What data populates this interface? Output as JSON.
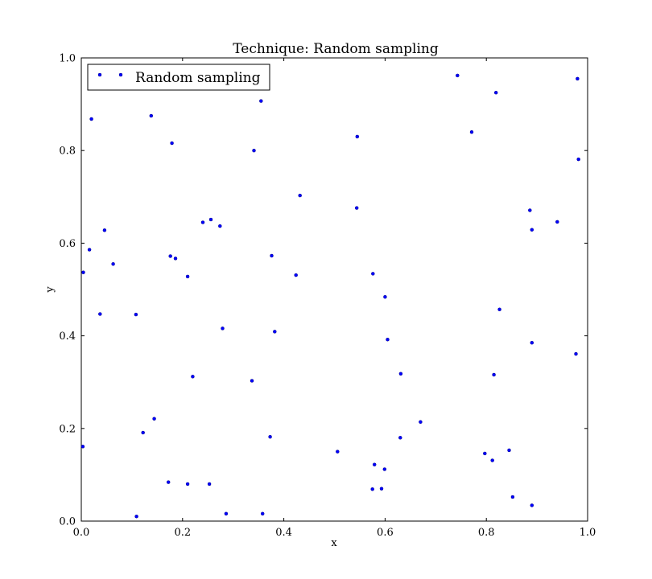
{
  "chart_data": {
    "type": "scatter",
    "title": "Technique: Random sampling",
    "xlabel": "x",
    "ylabel": "y",
    "xlim": [
      0.0,
      1.0
    ],
    "ylim": [
      0.0,
      1.0
    ],
    "x_ticks": [
      "0.0",
      "0.2",
      "0.4",
      "0.6",
      "0.8",
      "1.0"
    ],
    "y_ticks": [
      "0.0",
      "0.2",
      "0.4",
      "0.6",
      "0.8",
      "1.0"
    ],
    "grid": false,
    "legend": {
      "position": "top-left",
      "entries": [
        "Random sampling"
      ]
    },
    "series": [
      {
        "name": "Random sampling",
        "color": "#0000ff",
        "marker": "point",
        "points": [
          [
            0.743,
            0.962
          ],
          [
            0.98,
            0.955
          ],
          [
            0.819,
            0.925
          ],
          [
            0.355,
            0.907
          ],
          [
            0.02,
            0.868
          ],
          [
            0.138,
            0.875
          ],
          [
            0.545,
            0.83
          ],
          [
            0.771,
            0.84
          ],
          [
            0.179,
            0.816
          ],
          [
            0.341,
            0.8
          ],
          [
            0.982,
            0.781
          ],
          [
            0.432,
            0.703
          ],
          [
            0.544,
            0.676
          ],
          [
            0.886,
            0.671
          ],
          [
            0.94,
            0.646
          ],
          [
            0.24,
            0.645
          ],
          [
            0.256,
            0.651
          ],
          [
            0.274,
            0.637
          ],
          [
            0.046,
            0.628
          ],
          [
            0.89,
            0.629
          ],
          [
            0.016,
            0.586
          ],
          [
            0.176,
            0.572
          ],
          [
            0.186,
            0.567
          ],
          [
            0.376,
            0.573
          ],
          [
            0.063,
            0.555
          ],
          [
            0.004,
            0.537
          ],
          [
            0.21,
            0.528
          ],
          [
            0.424,
            0.531
          ],
          [
            0.576,
            0.534
          ],
          [
            0.6,
            0.484
          ],
          [
            0.826,
            0.457
          ],
          [
            0.037,
            0.447
          ],
          [
            0.108,
            0.446
          ],
          [
            0.279,
            0.416
          ],
          [
            0.382,
            0.409
          ],
          [
            0.605,
            0.392
          ],
          [
            0.89,
            0.385
          ],
          [
            0.977,
            0.361
          ],
          [
            0.631,
            0.318
          ],
          [
            0.815,
            0.316
          ],
          [
            0.22,
            0.312
          ],
          [
            0.337,
            0.303
          ],
          [
            0.144,
            0.221
          ],
          [
            0.67,
            0.214
          ],
          [
            0.122,
            0.191
          ],
          [
            0.373,
            0.182
          ],
          [
            0.63,
            0.18
          ],
          [
            0.003,
            0.161
          ],
          [
            0.845,
            0.153
          ],
          [
            0.506,
            0.15
          ],
          [
            0.797,
            0.146
          ],
          [
            0.812,
            0.131
          ],
          [
            0.579,
            0.122
          ],
          [
            0.599,
            0.112
          ],
          [
            0.172,
            0.084
          ],
          [
            0.21,
            0.08
          ],
          [
            0.253,
            0.08
          ],
          [
            0.575,
            0.069
          ],
          [
            0.593,
            0.07
          ],
          [
            0.852,
            0.052
          ],
          [
            0.89,
            0.034
          ],
          [
            0.286,
            0.016
          ],
          [
            0.358,
            0.016
          ],
          [
            0.109,
            0.01
          ]
        ]
      }
    ]
  }
}
